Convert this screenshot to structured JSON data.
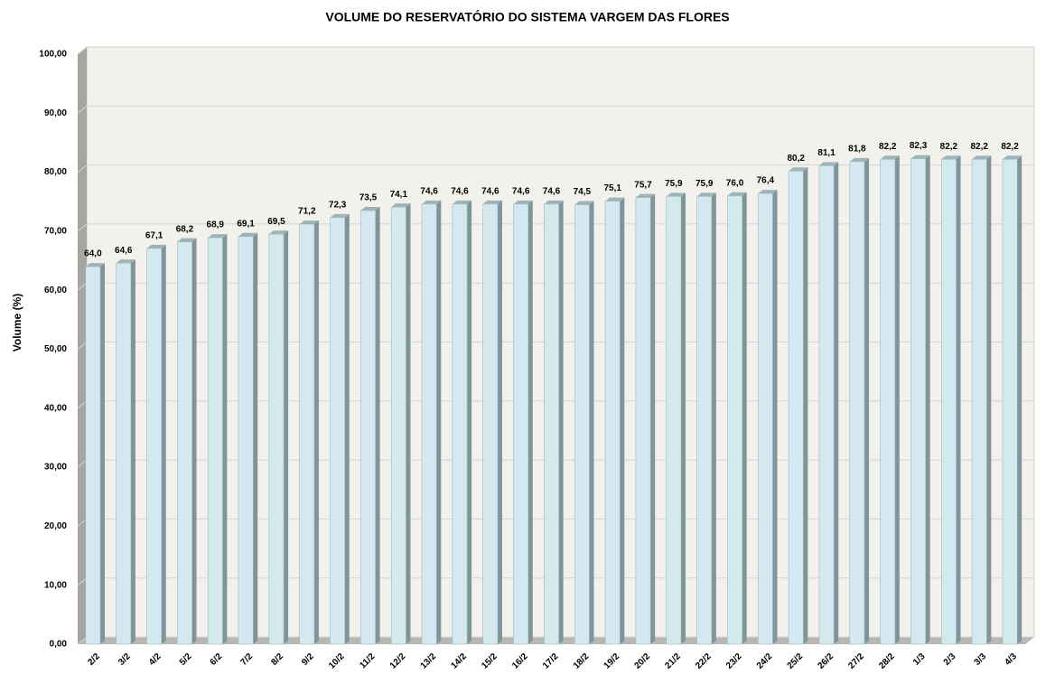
{
  "chart_data": {
    "type": "bar3d",
    "title": "VOLUME DO RESERVATÓRIO DO SISTEMA VARGEM DAS FLORES",
    "y_label": "Volume (%)",
    "categories": [
      "2/2",
      "3/2",
      "4/2",
      "5/2",
      "6/2",
      "7/2",
      "8/2",
      "9/2",
      "10/2",
      "11/2",
      "12/2",
      "13/2",
      "14/2",
      "15/2",
      "16/2",
      "17/2",
      "18/2",
      "19/2",
      "20/2",
      "21/2",
      "22/2",
      "23/2",
      "24/2",
      "25/2",
      "26/2",
      "27/2",
      "28/2",
      "1/3",
      "2/3",
      "3/3",
      "4/3"
    ],
    "values": [
      64.0,
      64.6,
      67.1,
      68.2,
      68.9,
      69.1,
      69.5,
      71.2,
      72.3,
      73.5,
      74.1,
      74.6,
      74.6,
      74.6,
      74.6,
      74.6,
      74.5,
      75.1,
      75.7,
      75.9,
      75.9,
      76.0,
      76.4,
      80.2,
      81.1,
      81.8,
      82.2,
      82.3,
      82.2,
      82.2,
      82.2
    ],
    "value_labels": [
      "64,0",
      "64,6",
      "67,1",
      "68,2",
      "68,9",
      "69,1",
      "69,5",
      "71,2",
      "72,3",
      "73,5",
      "74,1",
      "74,6",
      "74,6",
      "74,6",
      "74,6",
      "74,6",
      "74,5",
      "75,1",
      "75,7",
      "75,9",
      "75,9",
      "76,0",
      "76,4",
      "80,2",
      "81,1",
      "81,8",
      "82,2",
      "82,3",
      "82,2",
      "82,2",
      "82,2"
    ],
    "color": "#d3e9ef",
    "ylim": [
      0,
      100
    ],
    "yticks": [
      {
        "value": 0,
        "label": "0,00"
      },
      {
        "value": 10,
        "label": "10,00"
      },
      {
        "value": 20,
        "label": "20,00"
      },
      {
        "value": 30,
        "label": "30,00"
      },
      {
        "value": 40,
        "label": "40,00"
      },
      {
        "value": 50,
        "label": "50,00"
      },
      {
        "value": 60,
        "label": "60,00"
      },
      {
        "value": 70,
        "label": "70,00"
      },
      {
        "value": 80,
        "label": "80,00"
      },
      {
        "value": 90,
        "label": "90,00"
      },
      {
        "value": 100,
        "label": "100,00"
      }
    ],
    "grid": true
  }
}
